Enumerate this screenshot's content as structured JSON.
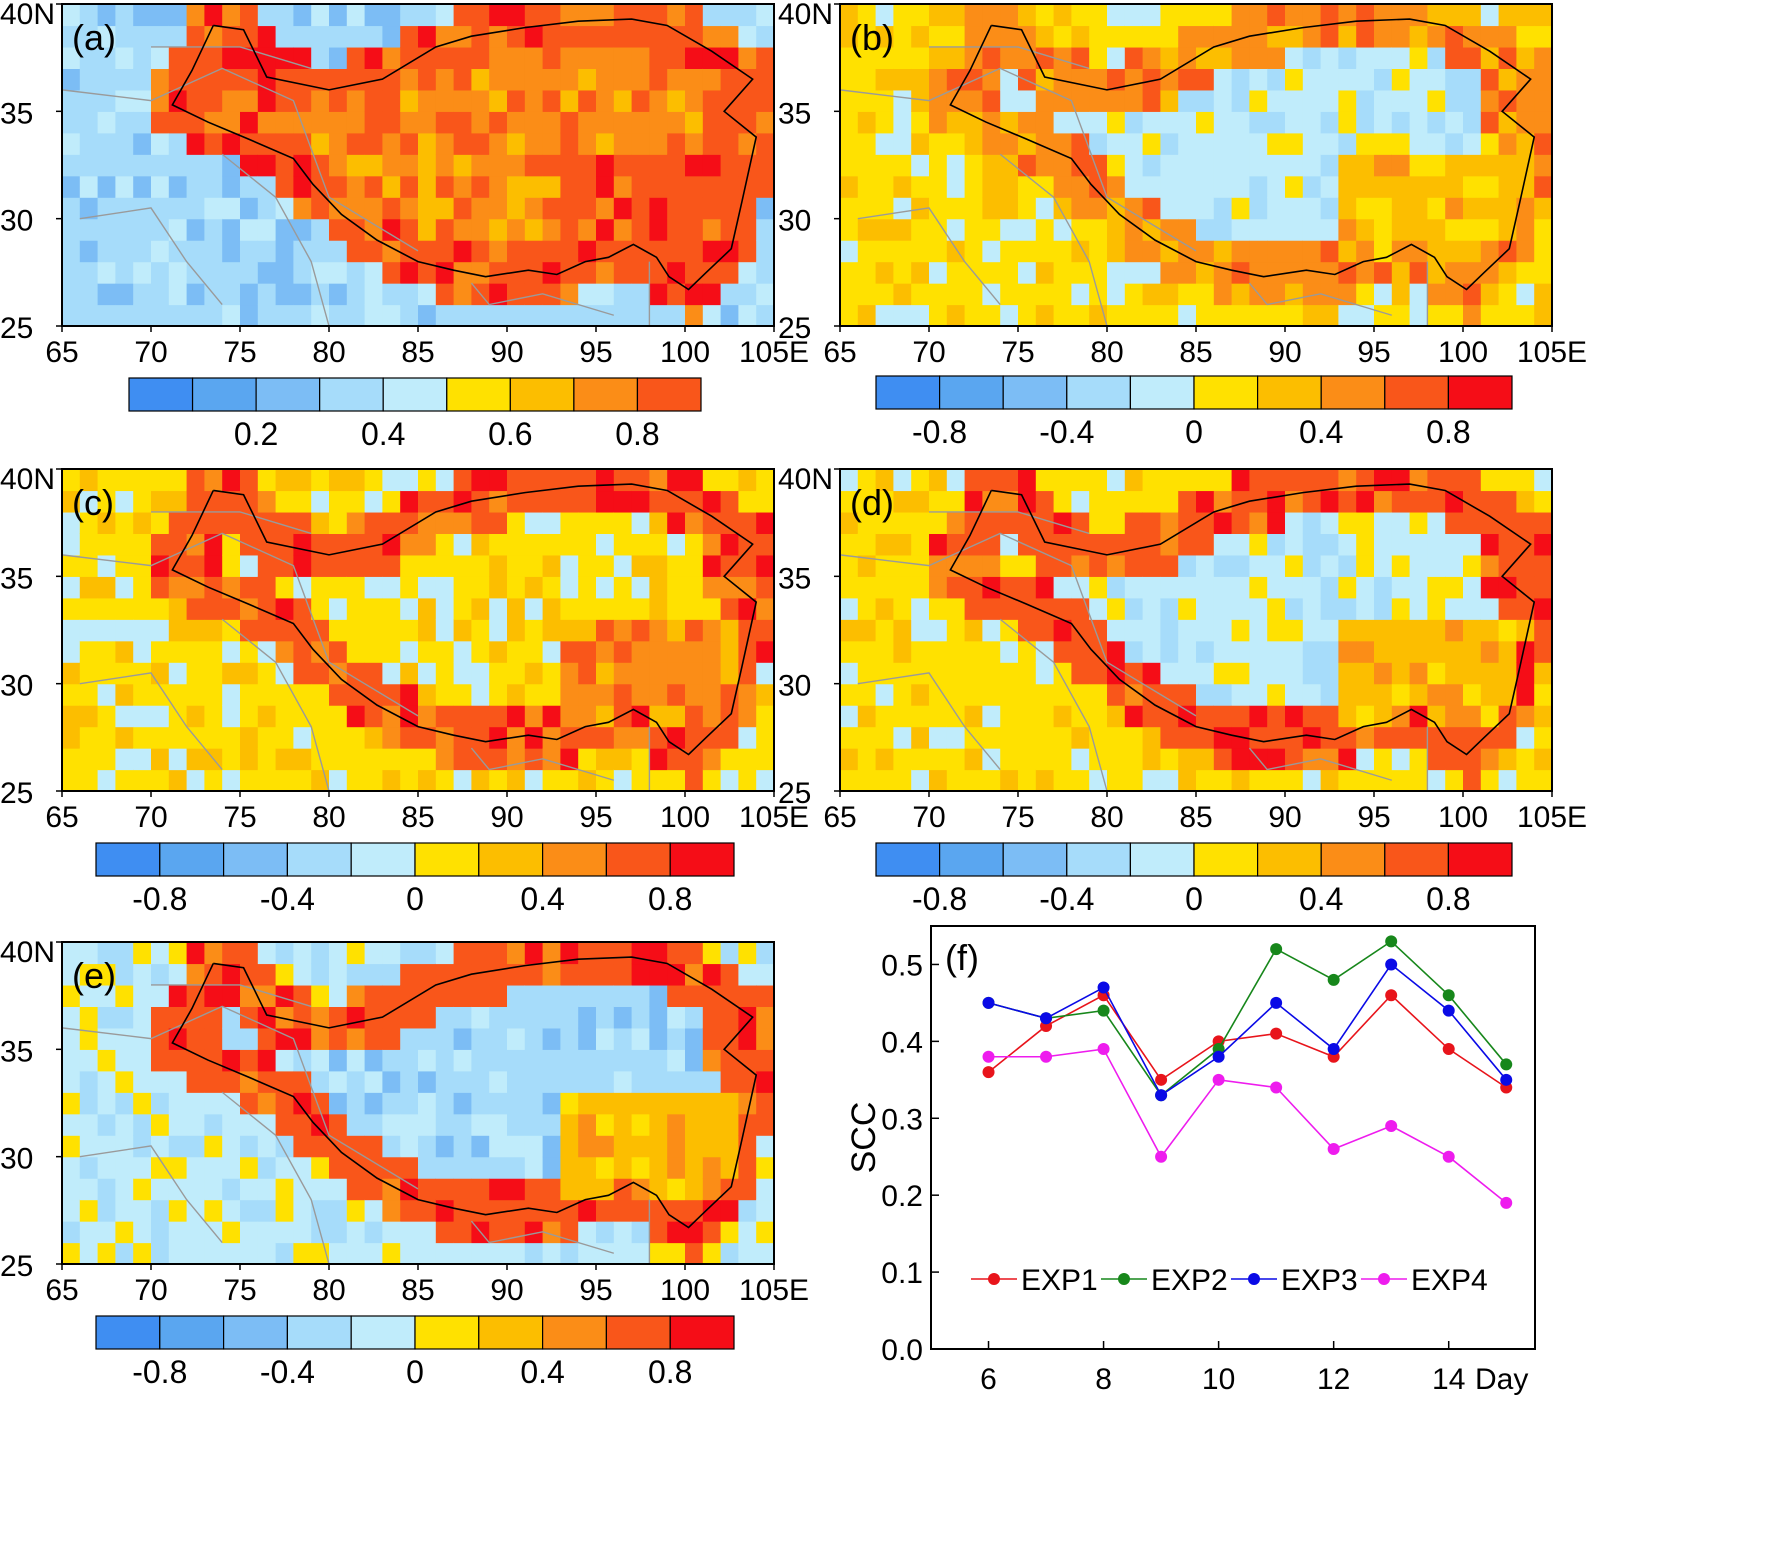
{
  "colors": {
    "levels": [
      "#3f8ef2",
      "#5aa6f0",
      "#7cbdf5",
      "#a6dcfa",
      "#c0ecfb",
      "#ffe100",
      "#fcbe00",
      "#fb8d17",
      "#f9561a",
      "#f50d17"
    ],
    "tibet_boundary": "#000000",
    "country_borders": "#9a9a9a",
    "line_series": [
      "#e8141b",
      "#17871b",
      "#0a0ae6",
      "#ee1cee"
    ]
  },
  "maps": [
    {
      "panel_label": "(a)",
      "lat_ticks": [
        "40N",
        "35",
        "30",
        "25"
      ],
      "lon_ticks": [
        "65",
        "70",
        "75",
        "80",
        "85",
        "90",
        "95",
        "100",
        "105E"
      ],
      "colorbar": {
        "start_level": 0,
        "n_boxes": 9,
        "labels": [
          "0.2",
          "0.4",
          "0.6",
          "0.8"
        ]
      },
      "pattern": {
        "base": 3,
        "plateau": 7,
        "edge": 8,
        "hot": 8
      }
    },
    {
      "panel_label": "(b)",
      "lat_ticks": [
        "40N",
        "35",
        "30",
        "25"
      ],
      "lon_ticks": [
        "65",
        "70",
        "75",
        "80",
        "85",
        "90",
        "95",
        "100",
        "105E"
      ],
      "colorbar": {
        "start_level": 0,
        "n_boxes": 10,
        "labels": [
          "-0.8",
          "-0.4",
          "0",
          "0.4",
          "0.8"
        ]
      },
      "pattern": {
        "base": 5,
        "plateau": 4,
        "edge": 7,
        "hot": 6
      }
    },
    {
      "panel_label": "(c)",
      "lat_ticks": [
        "40N",
        "35",
        "30",
        "25"
      ],
      "lon_ticks": [
        "65",
        "70",
        "75",
        "80",
        "85",
        "90",
        "95",
        "100",
        "105E"
      ],
      "colorbar": {
        "start_level": 0,
        "n_boxes": 10,
        "labels": [
          "-0.8",
          "-0.4",
          "0",
          "0.4",
          "0.8"
        ]
      },
      "pattern": {
        "base": 5,
        "plateau": 5,
        "edge": 8,
        "hot": 7
      }
    },
    {
      "panel_label": "(d)",
      "lat_ticks": [
        "40N",
        "35",
        "30",
        "25"
      ],
      "lon_ticks": [
        "65",
        "70",
        "75",
        "80",
        "85",
        "90",
        "95",
        "100",
        "105E"
      ],
      "colorbar": {
        "start_level": 0,
        "n_boxes": 10,
        "labels": [
          "-0.8",
          "-0.4",
          "0",
          "0.4",
          "0.8"
        ]
      },
      "pattern": {
        "base": 5,
        "plateau": 4,
        "edge": 8,
        "hot": 6
      }
    },
    {
      "panel_label": "(e)",
      "lat_ticks": [
        "40N",
        "35",
        "30",
        "25"
      ],
      "lon_ticks": [
        "65",
        "70",
        "75",
        "80",
        "85",
        "90",
        "95",
        "100",
        "105E"
      ],
      "colorbar": {
        "start_level": 0,
        "n_boxes": 10,
        "labels": [
          "-0.8",
          "-0.4",
          "0",
          "0.4",
          "0.8"
        ]
      },
      "pattern": {
        "base": 4,
        "plateau": 3,
        "edge": 8,
        "hot": 6
      }
    }
  ],
  "chart_data": {
    "type": "line",
    "panel_label": "(f)",
    "ylabel": "SCC",
    "xlabel": "Day",
    "x": [
      6,
      7,
      8,
      9,
      10,
      11,
      12,
      13,
      14,
      15
    ],
    "x_ticks": [
      "6",
      "8",
      "10",
      "12",
      "14"
    ],
    "y_ticks": [
      "0.0",
      "0.1",
      "0.2",
      "0.3",
      "0.4",
      "0.5"
    ],
    "xlim": [
      5,
      15.5
    ],
    "ylim": [
      0,
      0.55
    ],
    "legend_position": "bottom",
    "series": [
      {
        "name": "EXP1",
        "values": [
          0.36,
          0.42,
          0.46,
          0.35,
          0.4,
          0.41,
          0.38,
          0.46,
          0.39,
          0.34
        ]
      },
      {
        "name": "EXP2",
        "values": [
          0.45,
          0.43,
          0.44,
          0.33,
          0.39,
          0.52,
          0.48,
          0.53,
          0.46,
          0.37
        ]
      },
      {
        "name": "EXP3",
        "values": [
          0.45,
          0.43,
          0.47,
          0.33,
          0.38,
          0.45,
          0.39,
          0.5,
          0.44,
          0.35
        ]
      },
      {
        "name": "EXP4",
        "values": [
          0.38,
          0.38,
          0.39,
          0.25,
          0.35,
          0.34,
          0.26,
          0.29,
          0.25,
          0.19
        ]
      }
    ]
  }
}
